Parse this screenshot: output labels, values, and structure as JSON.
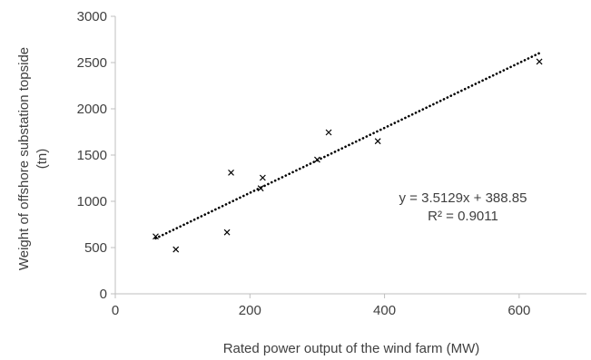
{
  "chart_data": {
    "type": "scatter",
    "title": "",
    "xlabel": "Rated power output of the wind farm (MW)",
    "ylabel_lines": [
      "Weight of offshore substation topside",
      "(tn)"
    ],
    "xlim": [
      0,
      700
    ],
    "ylim": [
      0,
      3000
    ],
    "x_ticks": [
      0,
      200,
      400,
      600
    ],
    "y_ticks": [
      0,
      500,
      1000,
      1500,
      2000,
      2500,
      3000
    ],
    "x_tick_labels": [
      "0",
      "200",
      "400",
      "600"
    ],
    "y_tick_labels": [
      "0",
      "500",
      "1000",
      "1500",
      "2000",
      "2500",
      "3000"
    ],
    "grid": false,
    "marker": "x",
    "marker_color": "#000000",
    "points": [
      {
        "x": 60,
        "y": 620
      },
      {
        "x": 90,
        "y": 480
      },
      {
        "x": 166,
        "y": 665
      },
      {
        "x": 172,
        "y": 1310
      },
      {
        "x": 216,
        "y": 1140
      },
      {
        "x": 219,
        "y": 1255
      },
      {
        "x": 300,
        "y": 1450
      },
      {
        "x": 317,
        "y": 1745
      },
      {
        "x": 390,
        "y": 1650
      },
      {
        "x": 630,
        "y": 2510
      }
    ],
    "trendline": {
      "type": "linear",
      "style": "dotted",
      "color": "#000000",
      "slope": 3.5129,
      "intercept": 388.85,
      "x_range": [
        60,
        630
      ]
    },
    "annotations": {
      "equation": "y = 3.5129x + 388.85",
      "r_squared": "R² = 0.9011"
    }
  }
}
